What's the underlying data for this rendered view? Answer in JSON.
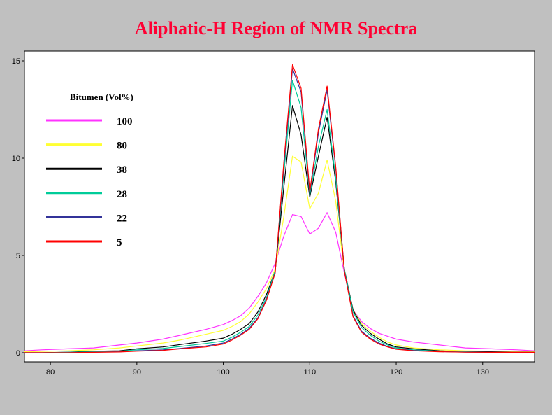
{
  "chart_data": {
    "type": "line",
    "title": "Aliphatic-H Region of NMR Spectra",
    "xlabel": "",
    "ylabel": "",
    "xlim": [
      77,
      136
    ],
    "ylim": [
      0,
      15.5
    ],
    "xticks": [
      80,
      90,
      100,
      110,
      120,
      130
    ],
    "yticks": [
      0,
      5,
      10,
      15
    ],
    "grid": false,
    "legend": {
      "title": "Bitumen (Vol%)",
      "placement": "top-left"
    },
    "series": [
      {
        "name": "100",
        "color": "#ff33ff",
        "x": [
          77,
          79,
          82,
          85,
          88,
          90,
          93,
          95,
          98,
          100,
          101,
          102,
          103,
          104,
          105,
          106,
          107,
          108,
          109,
          110,
          111,
          112,
          113,
          114,
          115,
          116,
          117,
          118,
          119,
          120,
          122,
          125,
          128,
          131,
          134,
          136
        ],
        "y": [
          0.1,
          0.15,
          0.2,
          0.25,
          0.4,
          0.5,
          0.7,
          0.9,
          1.2,
          1.45,
          1.65,
          1.9,
          2.3,
          2.9,
          3.6,
          4.6,
          6.0,
          7.1,
          7.0,
          6.1,
          6.4,
          7.2,
          6.2,
          4.1,
          2.2,
          1.6,
          1.25,
          1.0,
          0.85,
          0.7,
          0.55,
          0.4,
          0.25,
          0.2,
          0.15,
          0.1
        ]
      },
      {
        "name": "80",
        "color": "#ffff33",
        "x": [
          77,
          79,
          82,
          85,
          88,
          90,
          93,
          95,
          98,
          100,
          101,
          102,
          103,
          104,
          105,
          106,
          107,
          108,
          109,
          110,
          111,
          112,
          113,
          114,
          115,
          116,
          117,
          118,
          119,
          120,
          122,
          125,
          128,
          131,
          134,
          136
        ],
        "y": [
          0.05,
          0.07,
          0.1,
          0.15,
          0.25,
          0.35,
          0.5,
          0.65,
          0.95,
          1.15,
          1.35,
          1.6,
          2.0,
          2.6,
          3.3,
          4.3,
          7.0,
          10.1,
          9.8,
          7.4,
          8.2,
          9.9,
          7.8,
          4.2,
          2.2,
          1.5,
          1.1,
          0.8,
          0.55,
          0.4,
          0.25,
          0.15,
          0.1,
          0.08,
          0.05,
          0.05
        ]
      },
      {
        "name": "38",
        "color": "#000000",
        "x": [
          77,
          79,
          82,
          85,
          88,
          90,
          93,
          95,
          98,
          100,
          101,
          102,
          103,
          104,
          105,
          106,
          107,
          108,
          109,
          110,
          111,
          112,
          113,
          114,
          115,
          116,
          117,
          118,
          119,
          120,
          122,
          125,
          128,
          131,
          134,
          136
        ],
        "y": [
          0.0,
          0.0,
          0.03,
          0.08,
          0.1,
          0.2,
          0.3,
          0.42,
          0.6,
          0.75,
          0.95,
          1.2,
          1.5,
          2.1,
          3.0,
          4.2,
          8.5,
          12.7,
          11.2,
          8.0,
          10.1,
          12.1,
          8.8,
          4.3,
          2.2,
          1.4,
          1.0,
          0.7,
          0.45,
          0.3,
          0.2,
          0.1,
          0.05,
          0.05,
          0.03,
          0.03
        ]
      },
      {
        "name": "28",
        "color": "#00cc99",
        "x": [
          77,
          79,
          82,
          85,
          88,
          90,
          93,
          95,
          98,
          100,
          101,
          102,
          103,
          104,
          105,
          106,
          107,
          108,
          109,
          110,
          111,
          112,
          113,
          114,
          115,
          116,
          117,
          118,
          119,
          120,
          122,
          125,
          128,
          131,
          134,
          136
        ],
        "y": [
          0.0,
          0.0,
          0.02,
          0.05,
          0.08,
          0.15,
          0.22,
          0.32,
          0.48,
          0.6,
          0.8,
          1.05,
          1.35,
          1.95,
          2.85,
          4.2,
          9.2,
          14.0,
          12.6,
          8.1,
          10.6,
          12.5,
          9.0,
          4.3,
          2.1,
          1.3,
          0.9,
          0.6,
          0.4,
          0.25,
          0.15,
          0.08,
          0.05,
          0.03,
          0.02,
          0.02
        ]
      },
      {
        "name": "22",
        "color": "#333399",
        "x": [
          77,
          79,
          82,
          85,
          88,
          90,
          93,
          95,
          98,
          100,
          101,
          102,
          103,
          104,
          105,
          106,
          107,
          108,
          109,
          110,
          111,
          112,
          113,
          114,
          115,
          116,
          117,
          118,
          119,
          120,
          122,
          125,
          128,
          131,
          134,
          136
        ],
        "y": [
          0.0,
          0.0,
          0.0,
          0.03,
          0.05,
          0.1,
          0.15,
          0.22,
          0.35,
          0.5,
          0.7,
          0.95,
          1.25,
          1.8,
          2.75,
          4.1,
          9.6,
          14.6,
          13.4,
          8.2,
          11.3,
          13.5,
          9.5,
          4.2,
          1.9,
          1.1,
          0.75,
          0.5,
          0.32,
          0.2,
          0.12,
          0.06,
          0.03,
          0.02,
          0.02,
          0.02
        ]
      },
      {
        "name": "5",
        "color": "#ff0000",
        "x": [
          77,
          79,
          82,
          85,
          88,
          90,
          93,
          95,
          98,
          100,
          101,
          102,
          103,
          104,
          105,
          106,
          107,
          108,
          109,
          110,
          111,
          112,
          113,
          114,
          115,
          116,
          117,
          118,
          119,
          120,
          122,
          125,
          128,
          131,
          134,
          136
        ],
        "y": [
          0.0,
          0.0,
          0.0,
          0.02,
          0.04,
          0.08,
          0.12,
          0.2,
          0.3,
          0.45,
          0.65,
          0.9,
          1.2,
          1.75,
          2.7,
          4.1,
          9.8,
          14.8,
          13.6,
          8.3,
          11.5,
          13.7,
          9.6,
          4.2,
          1.85,
          1.05,
          0.7,
          0.45,
          0.3,
          0.18,
          0.1,
          0.05,
          0.03,
          0.02,
          0.02,
          0.02
        ]
      }
    ]
  }
}
